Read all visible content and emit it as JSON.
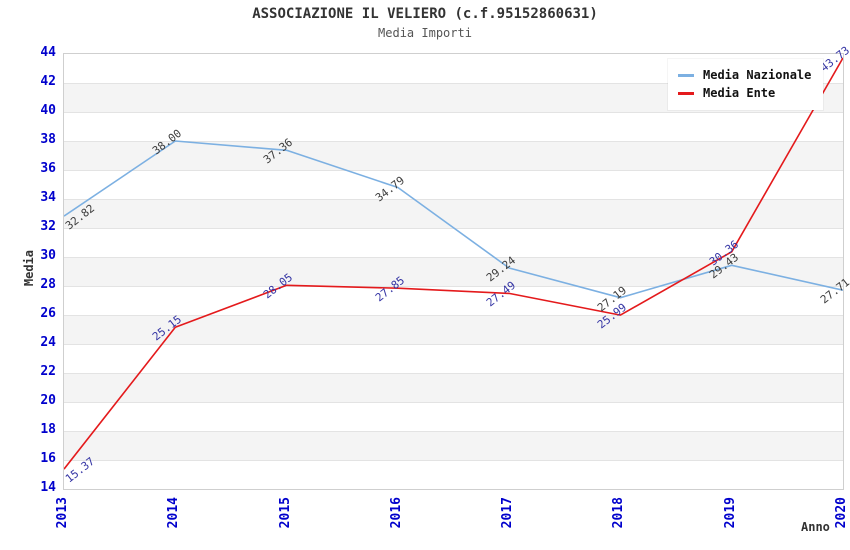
{
  "title": "ASSOCIAZIONE IL VELIERO (c.f.95152860631)",
  "subtitle": "Media Importi",
  "chart_data": {
    "type": "line",
    "x": [
      "2013",
      "2014",
      "2015",
      "2016",
      "2017",
      "2018",
      "2019",
      "2020"
    ],
    "xlabel": "Anno",
    "ylabel": "Media",
    "ylim": [
      14,
      44
    ],
    "ytick_step": 2,
    "grid": "horizontal-bands",
    "legend_position": "top-right",
    "series": [
      {
        "name": "Media Nazionale",
        "color": "#7cb0e2",
        "label_color": "#3c3c3c",
        "values": [
          32.82,
          38.0,
          37.36,
          34.79,
          29.24,
          27.19,
          29.43,
          27.71
        ]
      },
      {
        "name": "Media Ente",
        "color": "#e41a1c",
        "label_color": "#3434a4",
        "values": [
          15.37,
          25.15,
          28.05,
          27.85,
          27.49,
          25.99,
          30.36,
          43.73
        ]
      }
    ]
  },
  "colors": {
    "tick_label": "#0000cc",
    "band_gray": "#f4f4f4",
    "band_white": "#ffffff",
    "gridline": "#e3e3e3",
    "plot_border": "#cfcfcf",
    "title_text": "#333333",
    "subtitle_text": "#555555"
  }
}
